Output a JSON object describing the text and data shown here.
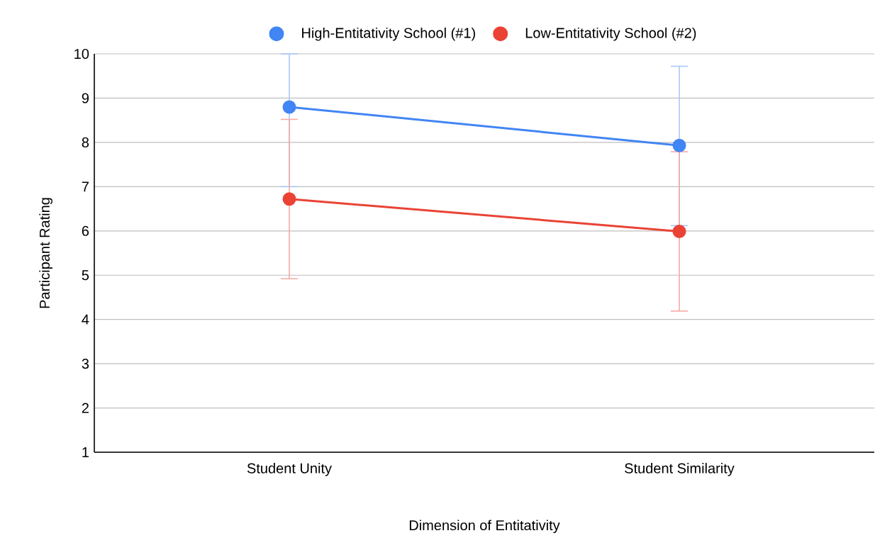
{
  "chart_data": {
    "type": "line",
    "xlabel": "Dimension of Entitativity",
    "ylabel": "Participant Rating",
    "categories": [
      "Student Unity",
      "Student Similarity"
    ],
    "series": [
      {
        "name": "High-Entitativity School (#1)",
        "color": "#4285f4",
        "values": [
          8.8,
          7.93
        ],
        "errors": [
          [
            7.0,
            10.0
          ],
          [
            6.12,
            9.72
          ]
        ]
      },
      {
        "name": "Low-Entitativity School (#2)",
        "color": "#ea4335",
        "values": [
          6.72,
          5.99
        ],
        "errors": [
          [
            4.92,
            8.52
          ],
          [
            4.19,
            7.79
          ]
        ]
      }
    ],
    "ylim": [
      1,
      10
    ],
    "yticks": [
      1,
      2,
      3,
      4,
      5,
      6,
      7,
      8,
      9,
      10
    ],
    "grid": "y",
    "legend": "top",
    "marker": "circle",
    "line_style": "solid"
  }
}
